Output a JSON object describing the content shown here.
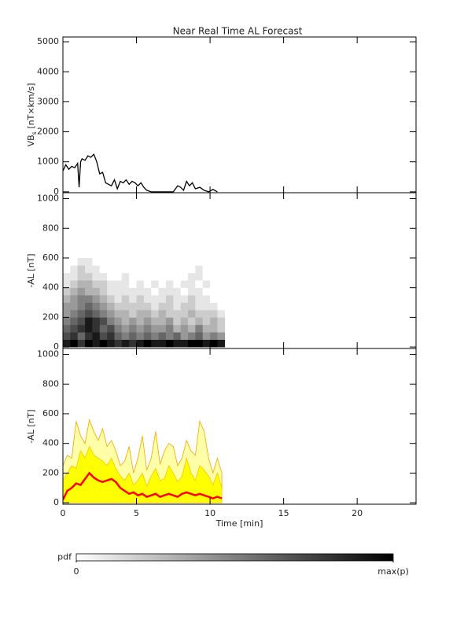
{
  "title": "Near Real Time AL Forecast",
  "chart_data": [
    {
      "type": "line",
      "ylabel": "VB",
      "ylabel_sub": "s",
      "ylabel_unit": " [nT×km/s]",
      "xlim": [
        0,
        24
      ],
      "xticks": [
        0,
        5,
        10,
        15,
        20
      ],
      "ylim": [
        -30,
        5160
      ],
      "yticks": [
        0,
        1000,
        2000,
        3000,
        4000,
        5000
      ],
      "x": [
        0,
        0.2,
        0.4,
        0.6,
        0.8,
        1.0,
        1.1,
        1.2,
        1.3,
        1.5,
        1.7,
        1.9,
        2.1,
        2.3,
        2.5,
        2.7,
        2.9,
        3.1,
        3.3,
        3.5,
        3.7,
        3.9,
        4.1,
        4.3,
        4.5,
        4.7,
        4.9,
        5.1,
        5.3,
        5.5,
        5.7,
        6.0,
        6.5,
        7.0,
        7.5,
        7.8,
        8.0,
        8.2,
        8.4,
        8.6,
        8.8,
        9.0,
        9.3,
        9.6,
        9.9,
        10.2,
        10.5
      ],
      "values": [
        700,
        900,
        750,
        850,
        800,
        950,
        150,
        1000,
        1100,
        1050,
        1200,
        1150,
        1250,
        1000,
        600,
        650,
        300,
        250,
        200,
        400,
        100,
        350,
        300,
        400,
        250,
        350,
        300,
        200,
        300,
        150,
        50,
        0,
        0,
        0,
        0,
        200,
        150,
        50,
        350,
        200,
        300,
        100,
        150,
        50,
        0,
        80,
        0
      ],
      "color": "#000000"
    },
    {
      "type": "heatmap",
      "ylabel": "-AL [nT]",
      "xlim": [
        0,
        24
      ],
      "xticks": [
        0,
        5,
        10,
        15,
        20
      ],
      "ylim": [
        -10,
        1040
      ],
      "yticks": [
        0,
        200,
        400,
        600,
        800,
        1000
      ],
      "x_edges": [
        0,
        0.5,
        1,
        1.5,
        2,
        2.5,
        3,
        3.5,
        4,
        4.5,
        5,
        5.5,
        6,
        6.5,
        7,
        7.5,
        8,
        8.5,
        9,
        9.5,
        10,
        10.5,
        11
      ],
      "y_edges": [
        0,
        50,
        100,
        150,
        200,
        250,
        300,
        350,
        400,
        450,
        500,
        550,
        600
      ],
      "z": [
        [
          0.9,
          1,
          0.8,
          1,
          0.9,
          1,
          0.9,
          0.8,
          0.9,
          0.8,
          0.9,
          1,
          0.9,
          0.9,
          1,
          0.9,
          0.9,
          1,
          1,
          0.9,
          1,
          0.9
        ],
        [
          0.7,
          0.8,
          0.6,
          0.8,
          0.9,
          0.7,
          0.8,
          0.6,
          0.5,
          0.6,
          0.5,
          0.6,
          0.5,
          0.6,
          0.5,
          0.6,
          0.4,
          0.5,
          0.6,
          0.4,
          0.5,
          0.4
        ],
        [
          0.6,
          0.7,
          0.8,
          0.9,
          0.8,
          0.6,
          0.7,
          0.5,
          0.4,
          0.5,
          0.4,
          0.5,
          0.4,
          0.4,
          0.5,
          0.3,
          0.4,
          0.3,
          0.5,
          0.3,
          0.3,
          0.2
        ],
        [
          0.5,
          0.6,
          0.7,
          0.9,
          0.8,
          0.7,
          0.5,
          0.4,
          0.3,
          0.4,
          0.3,
          0.4,
          0.3,
          0.3,
          0.4,
          0.2,
          0.3,
          0.2,
          0.3,
          0.2,
          0.3,
          0.2
        ],
        [
          0.4,
          0.5,
          0.6,
          0.7,
          0.6,
          0.5,
          0.4,
          0.3,
          0.3,
          0.2,
          0.3,
          0.3,
          0.2,
          0.3,
          0.2,
          0.2,
          0.2,
          0.3,
          0.2,
          0.2,
          0.2,
          0.1
        ],
        [
          0.4,
          0.4,
          0.5,
          0.6,
          0.5,
          0.4,
          0.3,
          0.2,
          0.2,
          0.2,
          0.2,
          0.2,
          0.1,
          0.2,
          0.2,
          0.1,
          0.2,
          0.2,
          0.1,
          0.1,
          0.1,
          0
        ],
        [
          0.3,
          0.4,
          0.5,
          0.5,
          0.4,
          0.3,
          0.2,
          0.1,
          0.2,
          0.1,
          0.2,
          0.1,
          0.1,
          0.1,
          0.2,
          0.1,
          0.1,
          0.2,
          0.1,
          0.1,
          0,
          0
        ],
        [
          0.2,
          0.3,
          0.4,
          0.3,
          0.3,
          0.2,
          0.1,
          0.1,
          0.1,
          0.1,
          0.1,
          0.1,
          0,
          0.1,
          0.1,
          0.1,
          0,
          0.1,
          0.1,
          0,
          0,
          0
        ],
        [
          0.1,
          0.2,
          0.3,
          0.3,
          0.2,
          0.2,
          0.1,
          0.1,
          0.1,
          0,
          0.1,
          0,
          0.1,
          0,
          0.1,
          0,
          0.1,
          0.1,
          0,
          0.1,
          0,
          0
        ],
        [
          0.1,
          0.1,
          0.2,
          0.2,
          0.1,
          0.1,
          0,
          0,
          0.1,
          0,
          0,
          0,
          0,
          0,
          0,
          0,
          0,
          0.1,
          0.1,
          0,
          0,
          0
        ],
        [
          0,
          0.1,
          0.2,
          0.1,
          0.1,
          0,
          0,
          0,
          0,
          0,
          0,
          0,
          0,
          0,
          0,
          0,
          0,
          0,
          0.1,
          0,
          0,
          0
        ],
        [
          0,
          0,
          0.1,
          0.1,
          0,
          0,
          0,
          0,
          0,
          0,
          0,
          0,
          0,
          0,
          0,
          0,
          0,
          0,
          0,
          0,
          0,
          0
        ]
      ]
    },
    {
      "type": "area",
      "ylabel": "-AL [nT]",
      "xlabel": "Time [min]",
      "show_xtick_labels": true,
      "xlim": [
        0,
        24
      ],
      "xticks": [
        0,
        5,
        10,
        15,
        20
      ],
      "ylim": [
        -10,
        1040
      ],
      "yticks": [
        0,
        200,
        400,
        600,
        800,
        1000
      ],
      "x": [
        0,
        0.3,
        0.6,
        0.9,
        1.2,
        1.5,
        1.8,
        2.1,
        2.4,
        2.7,
        3.0,
        3.3,
        3.6,
        3.9,
        4.2,
        4.5,
        4.8,
        5.1,
        5.4,
        5.7,
        6.0,
        6.3,
        6.6,
        6.9,
        7.2,
        7.5,
        7.8,
        8.1,
        8.4,
        8.7,
        9.0,
        9.3,
        9.6,
        9.9,
        10.2,
        10.5,
        10.8
      ],
      "series": [
        {
          "color": "#ffffa8",
          "edge": "#f5a300",
          "values": [
            250,
            320,
            300,
            550,
            450,
            400,
            560,
            480,
            420,
            500,
            380,
            420,
            350,
            250,
            280,
            380,
            200,
            300,
            450,
            220,
            300,
            480,
            260,
            350,
            400,
            380,
            250,
            300,
            420,
            350,
            320,
            550,
            480,
            300,
            200,
            300,
            200
          ]
        },
        {
          "color": "#ffff00",
          "edge": "#ffc000",
          "values": [
            150,
            200,
            250,
            230,
            350,
            300,
            380,
            320,
            300,
            280,
            250,
            300,
            230,
            180,
            150,
            200,
            120,
            150,
            200,
            110,
            180,
            230,
            150,
            160,
            250,
            200,
            140,
            180,
            300,
            200,
            150,
            250,
            220,
            180,
            120,
            200,
            100
          ]
        },
        {
          "color": "#ff0000",
          "values": [
            20,
            80,
            100,
            130,
            120,
            160,
            200,
            170,
            150,
            140,
            150,
            160,
            140,
            100,
            80,
            60,
            70,
            50,
            60,
            40,
            50,
            60,
            40,
            50,
            60,
            50,
            40,
            60,
            70,
            60,
            50,
            60,
            50,
            40,
            30,
            40,
            30
          ]
        }
      ]
    }
  ],
  "colorbar": {
    "label": "pdf",
    "clim": [
      0,
      1
    ],
    "cticks": [
      0,
      {
        "value": 1,
        "label": "max(p)"
      }
    ]
  }
}
